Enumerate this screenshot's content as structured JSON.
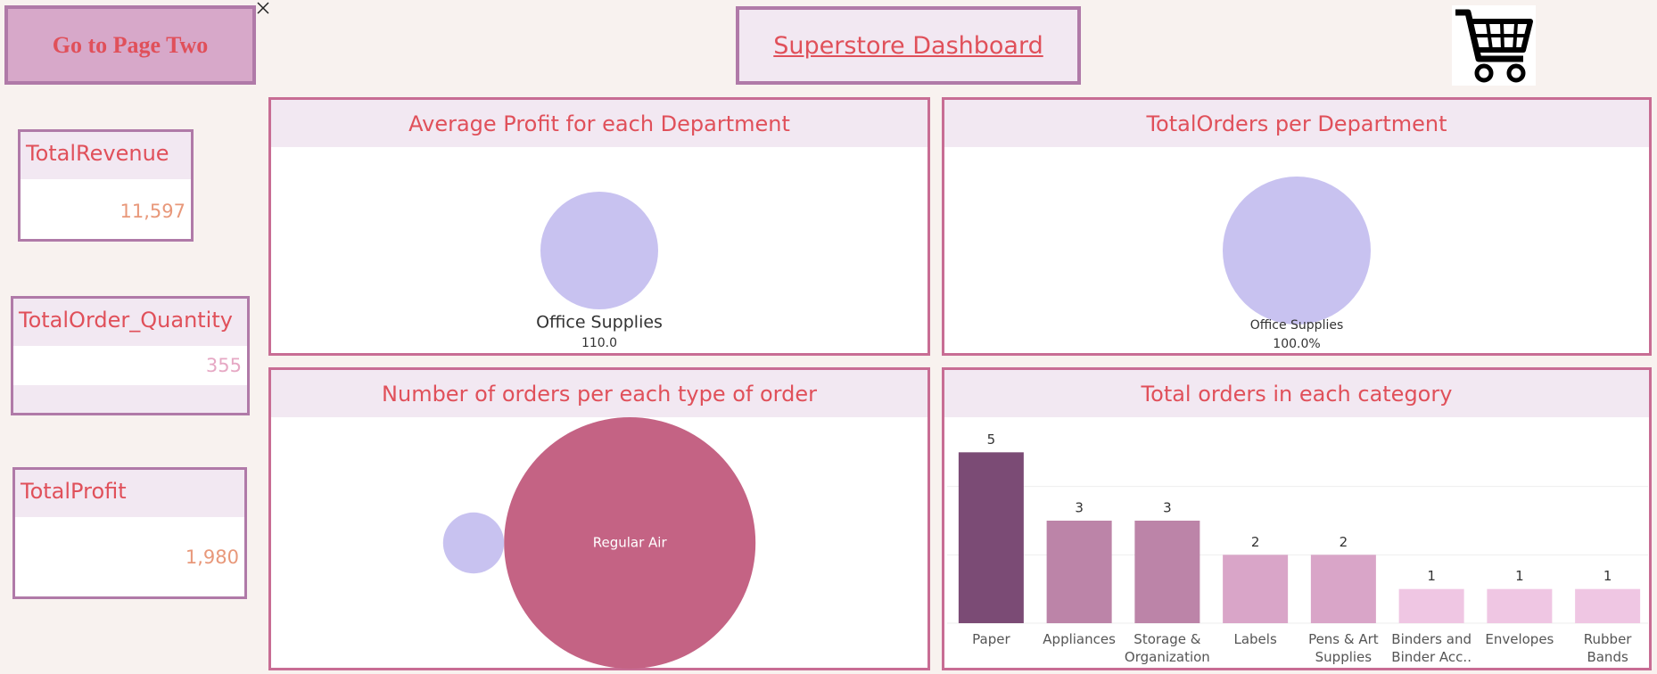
{
  "button": "Go to Page Two",
  "title": "Superstore Dashboard",
  "kpis": [
    {
      "label": "TotalRevenue",
      "value": "11,597"
    },
    {
      "label": "TotalOrder_Quantity",
      "value": "355"
    },
    {
      "label": "TotalProfit",
      "value": "1,980"
    }
  ],
  "chart_data": [
    {
      "type": "bubble",
      "title": "Average Profit for each Department",
      "categories": [
        "Office Supplies"
      ],
      "values": [
        110
      ],
      "value_labels": [
        "110.0"
      ],
      "colors": [
        "#c8c2f0"
      ]
    },
    {
      "type": "bubble",
      "title": "TotalOrders per Department",
      "categories": [
        "Office Supplies"
      ],
      "values": [
        100
      ],
      "value_labels": [
        "100.0%"
      ],
      "colors": [
        "#c8c2f0"
      ]
    },
    {
      "type": "bubble",
      "title": "Number of orders per each type of order",
      "categories": [
        "Regular Air",
        null
      ],
      "values": [
        17,
        1
      ],
      "colors": [
        "#c46384",
        "#c8c2f0"
      ]
    },
    {
      "type": "bar",
      "title": "Total orders in each category",
      "categories": [
        "Paper",
        "Appliances",
        "Storage & Organization",
        "Labels",
        "Pens & Art Supplies",
        "Binders and Binder Acc..",
        "Envelopes",
        "Rubber Bands"
      ],
      "values": [
        5,
        3,
        3,
        2,
        2,
        1,
        1,
        1
      ],
      "colors": [
        "#7b4b75",
        "#bc84a8",
        "#bc84a8",
        "#d9a5c8",
        "#d9a5c8",
        "#efc6e3",
        "#efc6e3",
        "#efc6e3"
      ],
      "ylim": [
        0,
        6
      ],
      "yticks": [
        0,
        2,
        4
      ],
      "grid": true
    }
  ]
}
